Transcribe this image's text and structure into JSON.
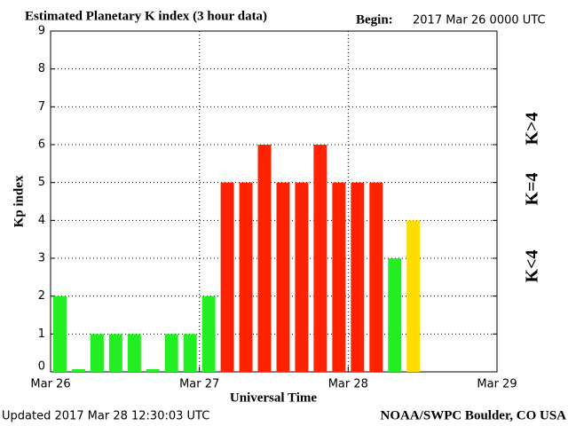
{
  "chart_data": {
    "type": "bar",
    "title": "Estimated Planetary K index (3 hour data)",
    "begin_label": "Begin:",
    "begin": "2017 Mar 26 0000 UTC",
    "x_label": "Universal Time",
    "y_label": "Kp index",
    "updated": "Updated 2017 Mar 28 12:30:03 UTC",
    "source": "NOAA/SWPC Boulder, CO USA",
    "x": [
      0,
      3,
      6,
      9,
      12,
      15,
      18,
      21,
      24,
      27,
      30,
      33,
      36,
      39,
      42,
      45,
      48,
      51,
      54,
      57
    ],
    "bin_width": 3,
    "values": [
      2,
      0,
      1,
      1,
      1,
      0,
      1,
      1,
      2,
      5,
      5,
      6,
      5,
      5,
      6,
      5,
      5,
      5,
      3,
      4
    ],
    "colors": [
      "#22ee22",
      "#22ee22",
      "#22ee22",
      "#22ee22",
      "#22ee22",
      "#22ee22",
      "#22ee22",
      "#22ee22",
      "#22ee22",
      "#ff2200",
      "#ff2200",
      "#ff2200",
      "#ff2200",
      "#ff2200",
      "#ff2200",
      "#ff2200",
      "#ff2200",
      "#ff2200",
      "#22ee22",
      "#ffdd00"
    ],
    "legend": [
      {
        "label": "K<4",
        "color": "#22ee22"
      },
      {
        "label": "K=4",
        "color": "#ffdd00"
      },
      {
        "label": "K>4",
        "color": "#ff2200"
      }
    ],
    "xlim": [
      0,
      72
    ],
    "xticks": [
      {
        "value": 0,
        "label": "Mar 26"
      },
      {
        "value": 24,
        "label": "Mar 27"
      },
      {
        "value": 48,
        "label": "Mar 28"
      },
      {
        "value": 72,
        "label": "Mar 29"
      }
    ],
    "ylim": [
      0,
      9
    ],
    "yticks": [
      0,
      1,
      2,
      3,
      4,
      5,
      6,
      7,
      8,
      9
    ],
    "grid": true
  }
}
